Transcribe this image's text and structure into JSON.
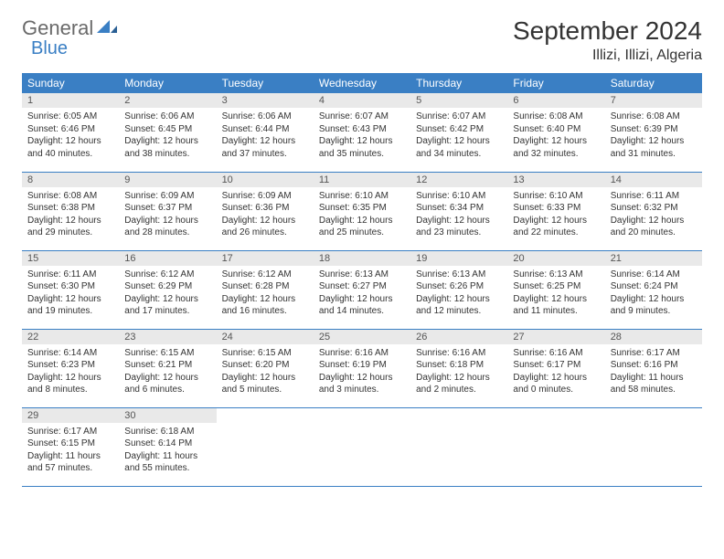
{
  "logo": {
    "general": "General",
    "blue": "Blue"
  },
  "title": "September 2024",
  "location": "Illizi, Illizi, Algeria",
  "colors": {
    "header_bg": "#3a7fc4",
    "header_text": "#ffffff",
    "daynum_bg": "#e9e9e9",
    "row_border": "#3a7fc4",
    "page_bg": "#ffffff",
    "text": "#333333",
    "logo_gray": "#6a6a6a",
    "logo_blue": "#3a7fc4"
  },
  "days_of_week": [
    "Sunday",
    "Monday",
    "Tuesday",
    "Wednesday",
    "Thursday",
    "Friday",
    "Saturday"
  ],
  "cells": [
    {
      "n": "1",
      "sr": "6:05 AM",
      "ss": "6:46 PM",
      "dl": "12 hours and 40 minutes."
    },
    {
      "n": "2",
      "sr": "6:06 AM",
      "ss": "6:45 PM",
      "dl": "12 hours and 38 minutes."
    },
    {
      "n": "3",
      "sr": "6:06 AM",
      "ss": "6:44 PM",
      "dl": "12 hours and 37 minutes."
    },
    {
      "n": "4",
      "sr": "6:07 AM",
      "ss": "6:43 PM",
      "dl": "12 hours and 35 minutes."
    },
    {
      "n": "5",
      "sr": "6:07 AM",
      "ss": "6:42 PM",
      "dl": "12 hours and 34 minutes."
    },
    {
      "n": "6",
      "sr": "6:08 AM",
      "ss": "6:40 PM",
      "dl": "12 hours and 32 minutes."
    },
    {
      "n": "7",
      "sr": "6:08 AM",
      "ss": "6:39 PM",
      "dl": "12 hours and 31 minutes."
    },
    {
      "n": "8",
      "sr": "6:08 AM",
      "ss": "6:38 PM",
      "dl": "12 hours and 29 minutes."
    },
    {
      "n": "9",
      "sr": "6:09 AM",
      "ss": "6:37 PM",
      "dl": "12 hours and 28 minutes."
    },
    {
      "n": "10",
      "sr": "6:09 AM",
      "ss": "6:36 PM",
      "dl": "12 hours and 26 minutes."
    },
    {
      "n": "11",
      "sr": "6:10 AM",
      "ss": "6:35 PM",
      "dl": "12 hours and 25 minutes."
    },
    {
      "n": "12",
      "sr": "6:10 AM",
      "ss": "6:34 PM",
      "dl": "12 hours and 23 minutes."
    },
    {
      "n": "13",
      "sr": "6:10 AM",
      "ss": "6:33 PM",
      "dl": "12 hours and 22 minutes."
    },
    {
      "n": "14",
      "sr": "6:11 AM",
      "ss": "6:32 PM",
      "dl": "12 hours and 20 minutes."
    },
    {
      "n": "15",
      "sr": "6:11 AM",
      "ss": "6:30 PM",
      "dl": "12 hours and 19 minutes."
    },
    {
      "n": "16",
      "sr": "6:12 AM",
      "ss": "6:29 PM",
      "dl": "12 hours and 17 minutes."
    },
    {
      "n": "17",
      "sr": "6:12 AM",
      "ss": "6:28 PM",
      "dl": "12 hours and 16 minutes."
    },
    {
      "n": "18",
      "sr": "6:13 AM",
      "ss": "6:27 PM",
      "dl": "12 hours and 14 minutes."
    },
    {
      "n": "19",
      "sr": "6:13 AM",
      "ss": "6:26 PM",
      "dl": "12 hours and 12 minutes."
    },
    {
      "n": "20",
      "sr": "6:13 AM",
      "ss": "6:25 PM",
      "dl": "12 hours and 11 minutes."
    },
    {
      "n": "21",
      "sr": "6:14 AM",
      "ss": "6:24 PM",
      "dl": "12 hours and 9 minutes."
    },
    {
      "n": "22",
      "sr": "6:14 AM",
      "ss": "6:23 PM",
      "dl": "12 hours and 8 minutes."
    },
    {
      "n": "23",
      "sr": "6:15 AM",
      "ss": "6:21 PM",
      "dl": "12 hours and 6 minutes."
    },
    {
      "n": "24",
      "sr": "6:15 AM",
      "ss": "6:20 PM",
      "dl": "12 hours and 5 minutes."
    },
    {
      "n": "25",
      "sr": "6:16 AM",
      "ss": "6:19 PM",
      "dl": "12 hours and 3 minutes."
    },
    {
      "n": "26",
      "sr": "6:16 AM",
      "ss": "6:18 PM",
      "dl": "12 hours and 2 minutes."
    },
    {
      "n": "27",
      "sr": "6:16 AM",
      "ss": "6:17 PM",
      "dl": "12 hours and 0 minutes."
    },
    {
      "n": "28",
      "sr": "6:17 AM",
      "ss": "6:16 PM",
      "dl": "11 hours and 58 minutes."
    },
    {
      "n": "29",
      "sr": "6:17 AM",
      "ss": "6:15 PM",
      "dl": "11 hours and 57 minutes."
    },
    {
      "n": "30",
      "sr": "6:18 AM",
      "ss": "6:14 PM",
      "dl": "11 hours and 55 minutes."
    }
  ],
  "labels": {
    "sunrise": "Sunrise:",
    "sunset": "Sunset:",
    "daylight": "Daylight:"
  },
  "layout": {
    "columns": 7,
    "rows": 5,
    "first_weekday_offset": 0,
    "cell_font_size": 10,
    "header_font_size": 12,
    "title_font_size": 28
  }
}
